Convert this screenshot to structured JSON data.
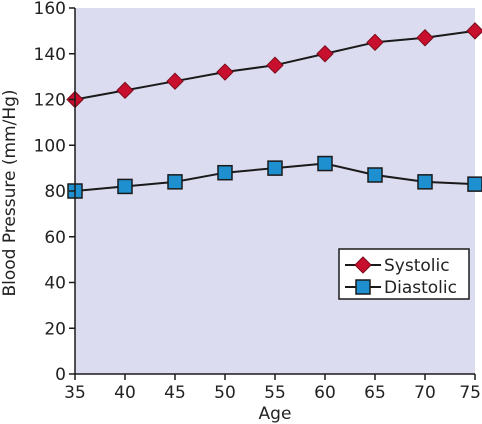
{
  "chart_data": {
    "type": "line",
    "xlabel": "Age",
    "ylabel": "Blood Pressure (mm/Hg)",
    "x": [
      35,
      40,
      45,
      50,
      55,
      60,
      65,
      70,
      75
    ],
    "xlim": [
      35,
      75
    ],
    "ylim": [
      0,
      160
    ],
    "x_ticks": [
      "35",
      "40",
      "45",
      "50",
      "55",
      "60",
      "65",
      "70",
      "75"
    ],
    "y_ticks": [
      "0",
      "20",
      "40",
      "60",
      "80",
      "100",
      "120",
      "140",
      "160"
    ],
    "grid": false,
    "legend_position": "right",
    "background_color": "#dcdcf0",
    "series": [
      {
        "name": "Systolic",
        "marker": "diamond",
        "color": "#c8102e",
        "line_color": "#1a1a1a",
        "values": [
          120,
          124,
          128,
          132,
          135,
          140,
          145,
          147,
          150
        ]
      },
      {
        "name": "Diastolic",
        "marker": "square",
        "color": "#1e90d0",
        "line_color": "#1a1a1a",
        "values": [
          80,
          82,
          84,
          88,
          90,
          92,
          87,
          84,
          83
        ]
      }
    ]
  }
}
